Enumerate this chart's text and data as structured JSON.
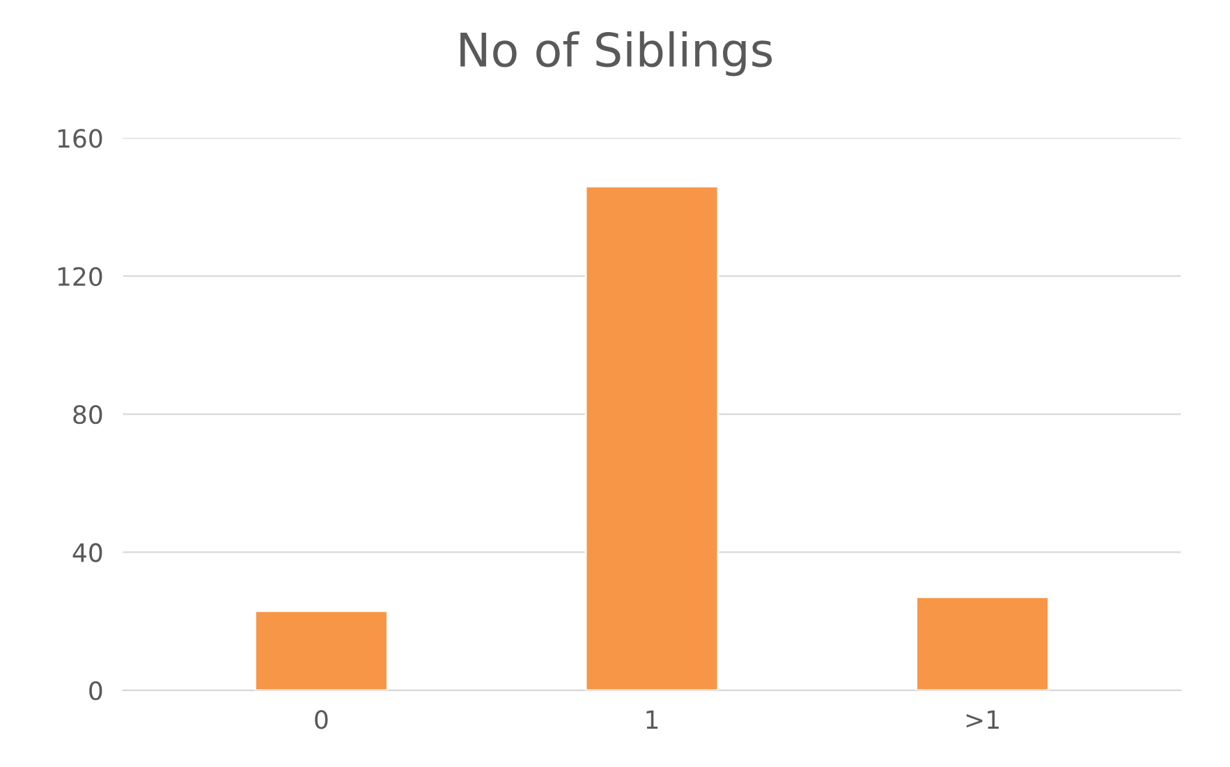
{
  "chart_data": {
    "type": "bar",
    "title": "No of Siblings",
    "categories": [
      "0",
      "1",
      ">1"
    ],
    "values": [
      23,
      146,
      27
    ],
    "color": "#f79646",
    "ylim": [
      0,
      160
    ],
    "yticks": [
      0,
      40,
      80,
      120,
      160
    ],
    "grid": "y",
    "legend": false
  }
}
